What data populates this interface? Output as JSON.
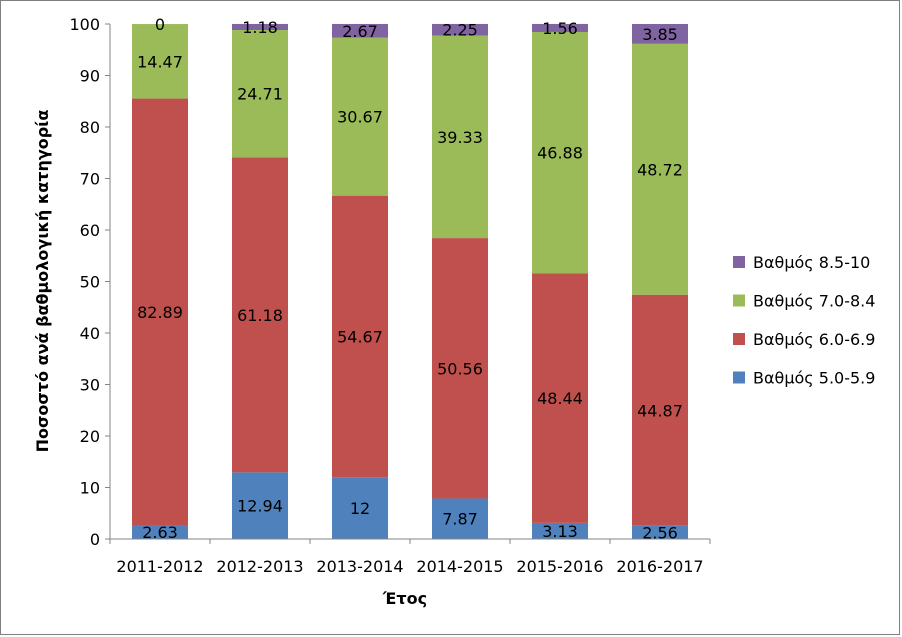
{
  "chart_data": {
    "type": "bar",
    "stacked": true,
    "categories": [
      "2011-2012",
      "2012-2013",
      "2013-2014",
      "2014-2015",
      "2015-2016",
      "2016-2017"
    ],
    "series": [
      {
        "name": "Βαθμός 5.0-5.9",
        "color": "#4f81bd",
        "values": [
          2.63,
          12.94,
          12,
          7.87,
          3.13,
          2.56
        ]
      },
      {
        "name": "Βαθμός 6.0-6.9",
        "color": "#c0504d",
        "values": [
          82.89,
          61.18,
          54.67,
          50.56,
          48.44,
          44.87
        ]
      },
      {
        "name": "Βαθμός 7.0-8.4",
        "color": "#9bbb59",
        "values": [
          14.47,
          24.71,
          30.67,
          39.33,
          46.88,
          48.72
        ]
      },
      {
        "name": "Βαθμός 8.5-10",
        "color": "#8064a2",
        "values": [
          0,
          1.18,
          2.67,
          2.25,
          1.56,
          3.85
        ]
      }
    ],
    "xlabel": "Έτος",
    "ylabel": "Ποσοστό ανά βαθμολογική κατηγορία",
    "ylim": [
      0,
      100
    ],
    "yticks": [
      "0",
      "10",
      "20",
      "30",
      "40",
      "50",
      "60",
      "70",
      "80",
      "90",
      "100"
    ],
    "grid": false,
    "legend_position": "right"
  }
}
